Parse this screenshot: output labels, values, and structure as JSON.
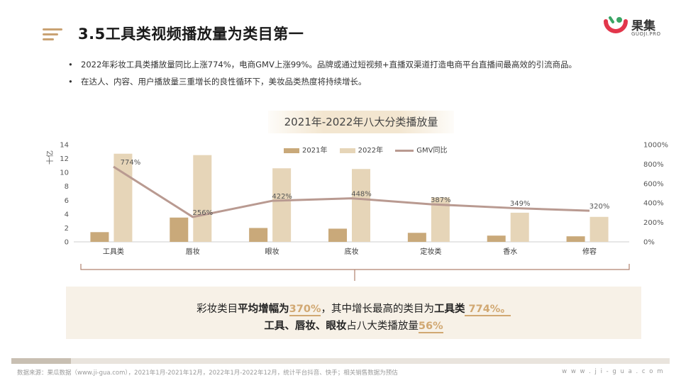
{
  "header": {
    "title": "3.5工具类视频播放量为类目第一"
  },
  "logo": {
    "name": "果集",
    "sub": "GUOJI.PRO"
  },
  "bullets": [
    "2022年彩妆工具类播放量同比上涨774%，电商GMV上涨99%。品牌或通过短视频+直播双渠道打造电商平台直播间最高效的引流商品。",
    "在达人、内容、用户播放量三重增长的良性循环下，美妆品类热度将持续增长。"
  ],
  "summary": {
    "line1_a": "彩妆类目",
    "line1_b": "平均增幅为",
    "line1_c": "370%",
    "line1_d": "，其中增长最高的类目为",
    "line1_e": "工具类",
    "line1_f": " 774%。",
    "line2_a": "工具、唇妆、眼妆",
    "line2_b": "占八大类播放量",
    "line2_c": "56%"
  },
  "footer": {
    "source": "数据来源：果瓜数据（www.ji-gua.com），2021年1月-2021年12月，2022年1月-2022年12月，统计平台抖音、快手；相关销售数据为预估",
    "url": "w w w . j i - g u a . c o m"
  },
  "progress": {
    "fraction": 0.09
  },
  "chart_data": {
    "type": "bar",
    "title": "2021年-2022年八大分类播放量",
    "categories": [
      "工具类",
      "唇妆",
      "眼妆",
      "底妆",
      "定妆类",
      "香水",
      "修容"
    ],
    "series": [
      {
        "name": "2021年",
        "type": "bar",
        "axis": "left",
        "color": "#c9a97a",
        "values": [
          1.4,
          3.5,
          2.0,
          1.9,
          1.3,
          0.9,
          0.8
        ]
      },
      {
        "name": "2022年",
        "type": "bar",
        "axis": "left",
        "color": "#e6d5b8",
        "values": [
          12.7,
          12.5,
          10.6,
          10.5,
          6.4,
          4.2,
          3.6
        ]
      },
      {
        "name": "GMV同比",
        "type": "line",
        "axis": "right",
        "color": "#b99a91",
        "values": [
          774,
          256,
          422,
          448,
          387,
          349,
          320
        ],
        "labels": [
          "774%",
          "256%",
          "422%",
          "448%",
          "387%",
          "349%",
          "320%"
        ]
      }
    ],
    "ylabel": "十亿",
    "ylim": [
      0,
      14
    ],
    "yticks": [
      "0",
      "2",
      "4",
      "6",
      "8",
      "10",
      "12",
      "14"
    ],
    "y2lim": [
      0,
      1000
    ],
    "y2ticks": [
      "0%",
      "200%",
      "400%",
      "600%",
      "800%",
      "1000%"
    ],
    "legend": "top-center",
    "grid": false
  }
}
